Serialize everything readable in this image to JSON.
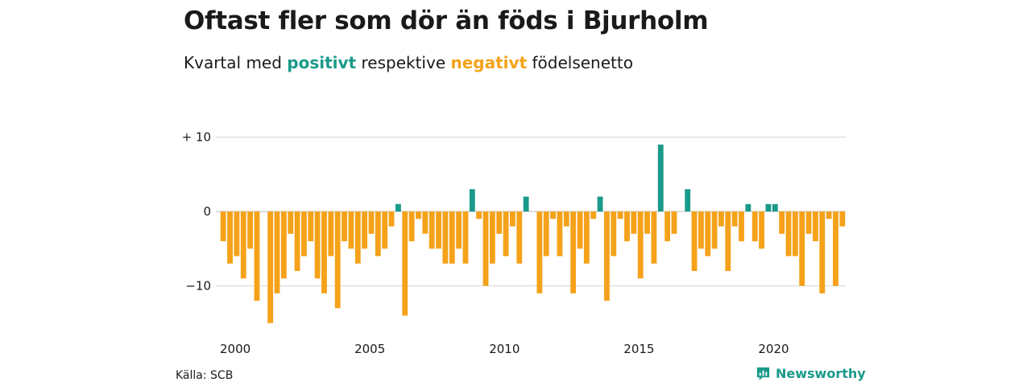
{
  "title": "Oftast fler som dör än föds i Bjurholm",
  "subtitle": {
    "prefix": "Kvartal med",
    "positive": "positivt",
    "middle": "respektive",
    "negative": "negativt",
    "suffix": "födelsenetto"
  },
  "source": "Källa: SCB",
  "brand": "Newsworthy",
  "colors": {
    "positive": "#1a9a8a",
    "negative": "#f5a21a",
    "grid": "#d6d6d6"
  },
  "chart_data": {
    "type": "bar",
    "title": "Oftast fler som dör än föds i Bjurholm",
    "xlabel": "",
    "ylabel": "",
    "ylim": [
      -15.5,
      10
    ],
    "xlim": [
      2000,
      2023.25
    ],
    "y_ticks": [
      {
        "value": 10,
        "label": "+ 10"
      },
      {
        "value": 0,
        "label": "0"
      },
      {
        "value": -10,
        "label": "−10"
      }
    ],
    "x_ticks": [
      {
        "value": 2000,
        "label": "2000"
      },
      {
        "value": 2005,
        "label": "2005"
      },
      {
        "value": 2010,
        "label": "2010"
      },
      {
        "value": 2015,
        "label": "2015"
      },
      {
        "value": 2020,
        "label": "2020"
      }
    ],
    "start_year": 2000,
    "periods_per_year": 4,
    "values": [
      -4,
      -7,
      -6,
      -9,
      -5,
      -12,
      0,
      -15,
      -11,
      -9,
      -3,
      -8,
      -6,
      -4,
      -9,
      -11,
      -6,
      -13,
      -4,
      -5,
      -7,
      -5,
      -3,
      -6,
      -5,
      -2,
      1,
      -14,
      -4,
      -1,
      -3,
      -5,
      -5,
      -7,
      -7,
      -5,
      -7,
      3,
      -1,
      -10,
      -7,
      -3,
      -6,
      -2,
      -7,
      2,
      0,
      -11,
      -6,
      -1,
      -6,
      -2,
      -11,
      -5,
      -7,
      -1,
      2,
      -12,
      -6,
      -1,
      -4,
      -3,
      -9,
      -3,
      -7,
      9,
      -4,
      -3,
      0,
      3,
      -8,
      -5,
      -6,
      -5,
      -2,
      -8,
      -2,
      -4,
      1,
      -4,
      -5,
      1,
      1,
      -3,
      -6,
      -6,
      -10,
      -3,
      -4,
      -11,
      -1,
      -10,
      -2
    ],
    "grid": true,
    "legend": "none"
  }
}
